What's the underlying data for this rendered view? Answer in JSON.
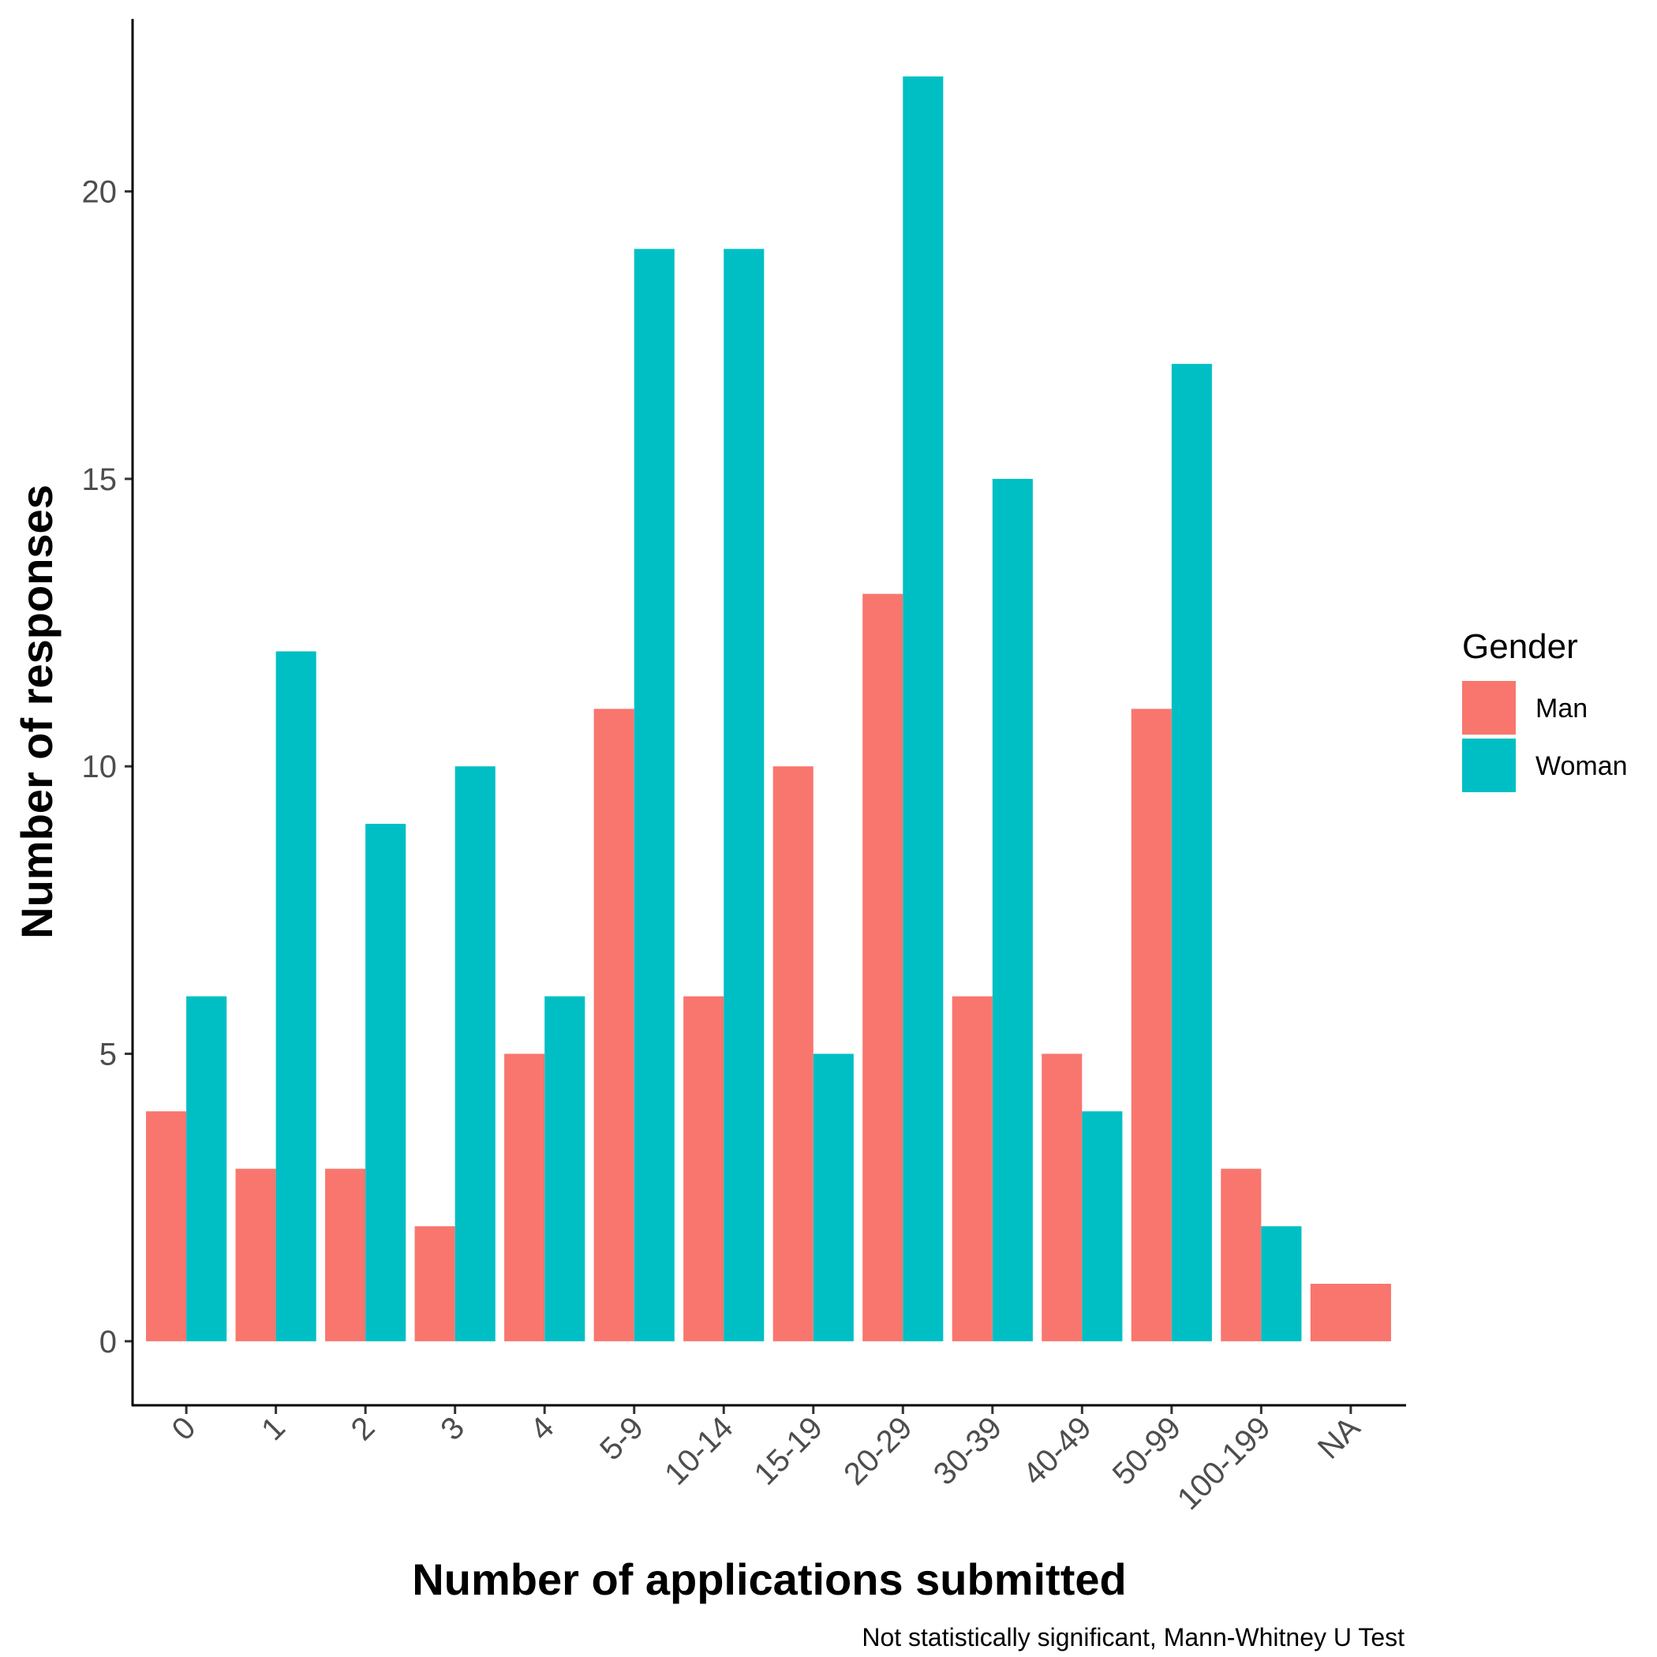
{
  "chart_data": {
    "type": "bar",
    "xlabel": "Number of applications submitted",
    "ylabel": "Number of responses",
    "caption": "Not statistically significant, Mann-Whitney U Test",
    "categories": [
      "0",
      "1",
      "2",
      "3",
      "4",
      "5-9",
      "10-14",
      "15-19",
      "20-29",
      "30-39",
      "40-49",
      "50-99",
      "100-199",
      "NA"
    ],
    "series": [
      {
        "name": "Man",
        "color": "#F8766D",
        "values": [
          4,
          3,
          3,
          2,
          5,
          11,
          6,
          10,
          13,
          6,
          5,
          11,
          3,
          1
        ]
      },
      {
        "name": "Woman",
        "color": "#00BFC4",
        "values": [
          6,
          12,
          9,
          10,
          6,
          19,
          19,
          5,
          22,
          15,
          4,
          17,
          2,
          null
        ]
      }
    ],
    "yticks": [
      0,
      5,
      10,
      15,
      20
    ],
    "ylim": [
      -1.1,
      23
    ],
    "legend": {
      "title": "Gender",
      "position": "right"
    },
    "grid": false
  }
}
